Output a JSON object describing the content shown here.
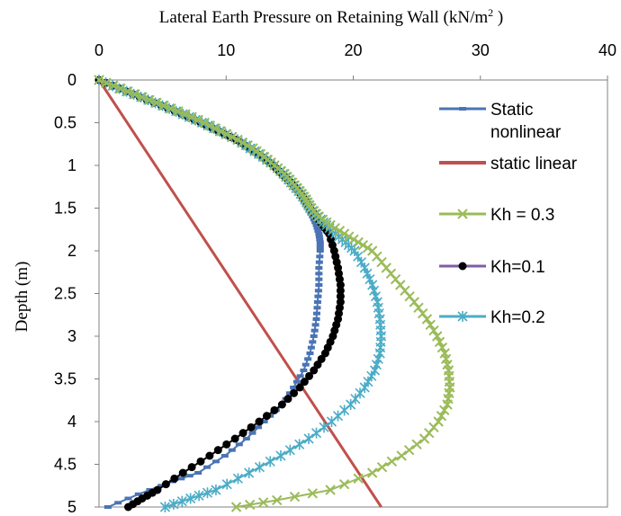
{
  "chart_data": {
    "type": "line",
    "xlabel": "Lateral Earth Pressure on Retaining Wall (kN/m",
    "xlabel_sup": "2",
    "xlabel_close": " )",
    "ylabel": "Depth (m)",
    "xlim": [
      0,
      40
    ],
    "ylim": [
      0,
      5
    ],
    "x_axis_position": "top",
    "y_axis_inverted": true,
    "grid": false,
    "legend_position": "right",
    "x_ticks": [
      "0",
      "10",
      "20",
      "30",
      "40"
    ],
    "y_ticks": [
      "0",
      "0.5",
      "1",
      "1.5",
      "2",
      "2.5",
      "3",
      "3.5",
      "4",
      "4.5",
      "5"
    ],
    "series": [
      {
        "name": "Static nonlinear",
        "legend_lines": [
          "Static",
          "nonlinear"
        ],
        "color": "#4a74b4",
        "marker": "dash",
        "points": [
          [
            0,
            0
          ],
          [
            1.6,
            0.1
          ],
          [
            3.2,
            0.2
          ],
          [
            4.9,
            0.3
          ],
          [
            6.5,
            0.4
          ],
          [
            8,
            0.5
          ],
          [
            9.4,
            0.6
          ],
          [
            10.8,
            0.7
          ],
          [
            11.8,
            0.8
          ],
          [
            12.8,
            0.9
          ],
          [
            13.7,
            1
          ],
          [
            14.4,
            1.1
          ],
          [
            15,
            1.2
          ],
          [
            15.6,
            1.3
          ],
          [
            16,
            1.4
          ],
          [
            16.4,
            1.5
          ],
          [
            16.8,
            1.6
          ],
          [
            17.1,
            1.7
          ],
          [
            17.3,
            1.8
          ],
          [
            17.4,
            1.9
          ],
          [
            17.4,
            2
          ],
          [
            17.3,
            2.2
          ],
          [
            17.3,
            2.4
          ],
          [
            17.2,
            2.6
          ],
          [
            17.1,
            2.8
          ],
          [
            16.9,
            3
          ],
          [
            16.6,
            3.2
          ],
          [
            16.1,
            3.4
          ],
          [
            15.3,
            3.6
          ],
          [
            14.4,
            3.8
          ],
          [
            13,
            4
          ],
          [
            11.6,
            4.2
          ],
          [
            9.9,
            4.4
          ],
          [
            7.8,
            4.6
          ],
          [
            5.8,
            4.7
          ],
          [
            3.1,
            4.85
          ],
          [
            0.7,
            5
          ]
        ]
      },
      {
        "name": "static linear",
        "legend_lines": [
          "static linear"
        ],
        "color": "#c0504d",
        "marker": "none",
        "points": [
          [
            0,
            0
          ],
          [
            22.2,
            5
          ]
        ]
      },
      {
        "name": "Kh = 0.3",
        "legend_lines": [
          "Kh = 0.3"
        ],
        "color": "#9bbb59",
        "marker": "x",
        "points": [
          [
            0,
            0
          ],
          [
            1.7,
            0.1
          ],
          [
            3.4,
            0.2
          ],
          [
            5.1,
            0.3
          ],
          [
            6.8,
            0.4
          ],
          [
            8.3,
            0.5
          ],
          [
            9.6,
            0.6
          ],
          [
            10.9,
            0.7
          ],
          [
            12.1,
            0.8
          ],
          [
            13,
            0.9
          ],
          [
            13.8,
            1
          ],
          [
            14.6,
            1.1
          ],
          [
            15.2,
            1.2
          ],
          [
            15.8,
            1.3
          ],
          [
            16.3,
            1.4
          ],
          [
            16.7,
            1.5
          ],
          [
            17.3,
            1.6
          ],
          [
            18.2,
            1.7
          ],
          [
            19.3,
            1.8
          ],
          [
            20.4,
            1.9
          ],
          [
            21.5,
            2
          ],
          [
            22.6,
            2.2
          ],
          [
            23.7,
            2.4
          ],
          [
            24.8,
            2.6
          ],
          [
            25.8,
            2.8
          ],
          [
            26.6,
            3
          ],
          [
            27.2,
            3.2
          ],
          [
            27.5,
            3.4
          ],
          [
            27.6,
            3.6
          ],
          [
            27.4,
            3.8
          ],
          [
            26.7,
            4
          ],
          [
            25.6,
            4.2
          ],
          [
            23.8,
            4.4
          ],
          [
            21.5,
            4.6
          ],
          [
            18.2,
            4.8
          ],
          [
            14,
            4.92
          ],
          [
            10.8,
            5
          ]
        ]
      },
      {
        "name": "Kh=0.1",
        "legend_lines": [
          "Kh=0.1"
        ],
        "color": "#000000",
        "legend_color": "#7f5ca3",
        "marker": "dot",
        "points": [
          [
            0,
            0
          ],
          [
            1.6,
            0.1
          ],
          [
            3.2,
            0.2
          ],
          [
            4.9,
            0.3
          ],
          [
            6.5,
            0.4
          ],
          [
            8,
            0.5
          ],
          [
            9.4,
            0.6
          ],
          [
            10.8,
            0.7
          ],
          [
            11.8,
            0.8
          ],
          [
            12.8,
            0.9
          ],
          [
            13.7,
            1
          ],
          [
            14.4,
            1.1
          ],
          [
            15.1,
            1.2
          ],
          [
            15.7,
            1.3
          ],
          [
            16.2,
            1.4
          ],
          [
            16.6,
            1.5
          ],
          [
            17.1,
            1.6
          ],
          [
            17.6,
            1.7
          ],
          [
            18.1,
            1.8
          ],
          [
            18.5,
            2
          ],
          [
            18.8,
            2.2
          ],
          [
            19,
            2.4
          ],
          [
            19,
            2.6
          ],
          [
            18.8,
            2.8
          ],
          [
            18.4,
            3
          ],
          [
            17.8,
            3.2
          ],
          [
            16.9,
            3.4
          ],
          [
            15.8,
            3.6
          ],
          [
            14.4,
            3.8
          ],
          [
            12.6,
            4
          ],
          [
            10.7,
            4.2
          ],
          [
            8.7,
            4.4
          ],
          [
            6.6,
            4.6
          ],
          [
            4.6,
            4.8
          ],
          [
            3.4,
            4.9
          ],
          [
            2.3,
            5
          ]
        ]
      },
      {
        "name": "Kh=0.2",
        "legend_lines": [
          "Kh=0.2"
        ],
        "color": "#4bacc6",
        "marker": "star",
        "points": [
          [
            0,
            0
          ],
          [
            1.6,
            0.1
          ],
          [
            3.3,
            0.2
          ],
          [
            5,
            0.3
          ],
          [
            6.6,
            0.4
          ],
          [
            8.1,
            0.5
          ],
          [
            9.5,
            0.6
          ],
          [
            10.9,
            0.7
          ],
          [
            11.9,
            0.8
          ],
          [
            12.9,
            0.9
          ],
          [
            13.8,
            1
          ],
          [
            14.5,
            1.1
          ],
          [
            15.1,
            1.2
          ],
          [
            15.7,
            1.3
          ],
          [
            16.2,
            1.4
          ],
          [
            16.6,
            1.5
          ],
          [
            17.2,
            1.6
          ],
          [
            17.9,
            1.7
          ],
          [
            18.6,
            1.8
          ],
          [
            19.4,
            1.9
          ],
          [
            20.1,
            2
          ],
          [
            20.9,
            2.2
          ],
          [
            21.5,
            2.4
          ],
          [
            21.9,
            2.6
          ],
          [
            22.1,
            2.8
          ],
          [
            22.2,
            3
          ],
          [
            22.1,
            3.2
          ],
          [
            21.7,
            3.4
          ],
          [
            20.9,
            3.6
          ],
          [
            19.8,
            3.8
          ],
          [
            18.3,
            4
          ],
          [
            16.5,
            4.2
          ],
          [
            14.3,
            4.4
          ],
          [
            11.8,
            4.6
          ],
          [
            9.2,
            4.8
          ],
          [
            7.2,
            4.9
          ],
          [
            5.2,
            5
          ]
        ]
      }
    ]
  }
}
